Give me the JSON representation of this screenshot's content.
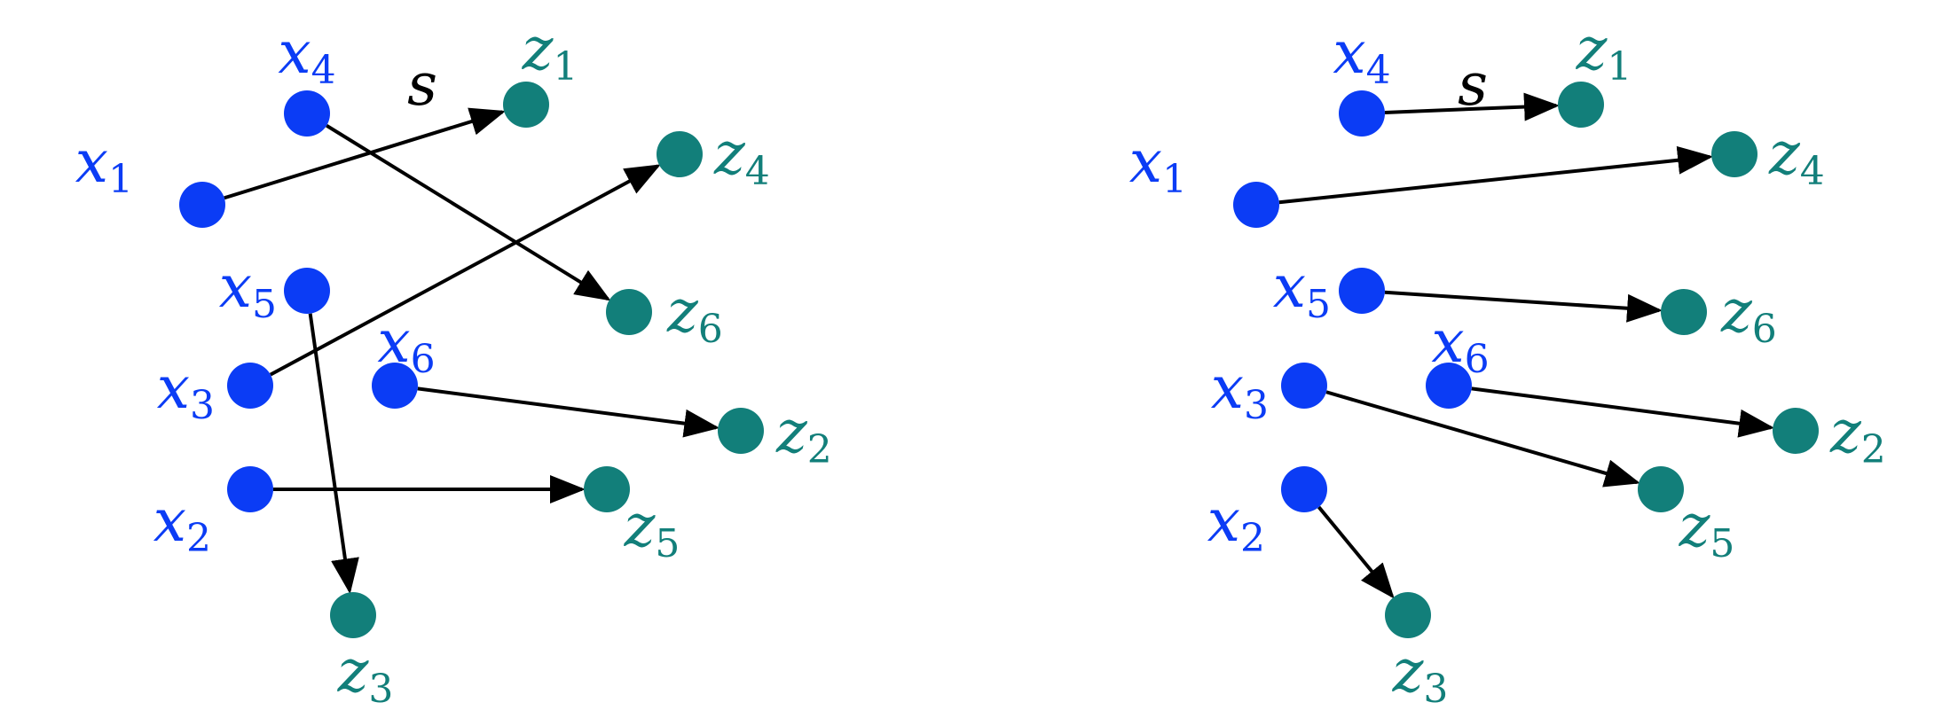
{
  "colors": {
    "source": "#0b3cf5",
    "target": "#127f7a",
    "edge": "#000000"
  },
  "edge_label": "s",
  "diagrams": [
    {
      "id": "left",
      "nodes": [
        {
          "id": "x1",
          "base": "x",
          "sub": "1",
          "kind": "source"
        },
        {
          "id": "x2",
          "base": "x",
          "sub": "2",
          "kind": "source"
        },
        {
          "id": "x3",
          "base": "x",
          "sub": "3",
          "kind": "source"
        },
        {
          "id": "x4",
          "base": "x",
          "sub": "4",
          "kind": "source"
        },
        {
          "id": "x5",
          "base": "x",
          "sub": "5",
          "kind": "source"
        },
        {
          "id": "x6",
          "base": "x",
          "sub": "6",
          "kind": "source"
        },
        {
          "id": "z1",
          "base": "z",
          "sub": "1",
          "kind": "target"
        },
        {
          "id": "z2",
          "base": "z",
          "sub": "2",
          "kind": "target"
        },
        {
          "id": "z3",
          "base": "z",
          "sub": "3",
          "kind": "target"
        },
        {
          "id": "z4",
          "base": "z",
          "sub": "4",
          "kind": "target"
        },
        {
          "id": "z5",
          "base": "z",
          "sub": "5",
          "kind": "target"
        },
        {
          "id": "z6",
          "base": "z",
          "sub": "6",
          "kind": "target"
        }
      ],
      "edges": [
        {
          "from": "x1",
          "to": "z1"
        },
        {
          "from": "x2",
          "to": "z5"
        },
        {
          "from": "x3",
          "to": "z4"
        },
        {
          "from": "x4",
          "to": "z6"
        },
        {
          "from": "x5",
          "to": "z3"
        },
        {
          "from": "x6",
          "to": "z2"
        }
      ]
    },
    {
      "id": "right",
      "nodes": [
        {
          "id": "x1",
          "base": "x",
          "sub": "1",
          "kind": "source"
        },
        {
          "id": "x2",
          "base": "x",
          "sub": "2",
          "kind": "source"
        },
        {
          "id": "x3",
          "base": "x",
          "sub": "3",
          "kind": "source"
        },
        {
          "id": "x4",
          "base": "x",
          "sub": "4",
          "kind": "source"
        },
        {
          "id": "x5",
          "base": "x",
          "sub": "5",
          "kind": "source"
        },
        {
          "id": "x6",
          "base": "x",
          "sub": "6",
          "kind": "source"
        },
        {
          "id": "z1",
          "base": "z",
          "sub": "1",
          "kind": "target"
        },
        {
          "id": "z2",
          "base": "z",
          "sub": "2",
          "kind": "target"
        },
        {
          "id": "z3",
          "base": "z",
          "sub": "3",
          "kind": "target"
        },
        {
          "id": "z4",
          "base": "z",
          "sub": "4",
          "kind": "target"
        },
        {
          "id": "z5",
          "base": "z",
          "sub": "5",
          "kind": "target"
        },
        {
          "id": "z6",
          "base": "z",
          "sub": "6",
          "kind": "target"
        }
      ],
      "edges": [
        {
          "from": "x4",
          "to": "z1"
        },
        {
          "from": "x1",
          "to": "z4"
        },
        {
          "from": "x5",
          "to": "z6"
        },
        {
          "from": "x6",
          "to": "z2"
        },
        {
          "from": "x3",
          "to": "z5"
        },
        {
          "from": "x2",
          "to": "z3"
        }
      ]
    }
  ]
}
